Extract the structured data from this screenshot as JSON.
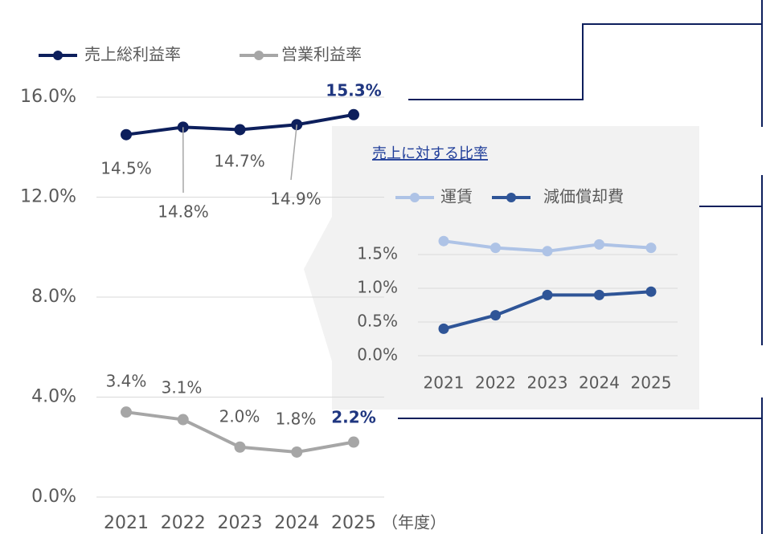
{
  "chart_data": [
    {
      "type": "line",
      "categories": [
        "2021",
        "2022",
        "2023",
        "2024",
        "2025"
      ],
      "x_label": "（年度）",
      "series": [
        {
          "name": "売上総利益率",
          "color": "#0d1f5c",
          "values": [
            14.5,
            14.8,
            14.7,
            14.9,
            15.3
          ],
          "value_labels": [
            "14.5%",
            "14.8%",
            "14.7%",
            "14.9%",
            "15.3%"
          ]
        },
        {
          "name": "営業利益率",
          "color": "#a6a6a6",
          "values": [
            3.4,
            3.1,
            2.0,
            1.8,
            2.2
          ],
          "value_labels": [
            "3.4%",
            "3.1%",
            "2.0%",
            "1.8%",
            "2.2%"
          ]
        }
      ],
      "ylim": [
        0,
        16
      ],
      "yticks": [
        {
          "value": 0,
          "label": "0.0%"
        },
        {
          "value": 4,
          "label": "4.0%"
        },
        {
          "value": 8,
          "label": "8.0%"
        },
        {
          "value": 12,
          "label": "12.0%"
        },
        {
          "value": 16,
          "label": "16.0%"
        }
      ],
      "grid": true,
      "legend": "top"
    },
    {
      "type": "line",
      "title": "売上に対する比率",
      "categories": [
        "2021",
        "2022",
        "2023",
        "2024",
        "2025"
      ],
      "series": [
        {
          "name": "運賃",
          "color": "#aec3e6",
          "values": [
            1.7,
            1.6,
            1.55,
            1.65,
            1.6
          ]
        },
        {
          "name": "減価償却費",
          "color": "#2f5597",
          "values": [
            0.4,
            0.6,
            0.9,
            0.9,
            0.95
          ]
        }
      ],
      "ylim": [
        0,
        1.75
      ],
      "yticks": [
        {
          "value": 0,
          "label": "0.0%"
        },
        {
          "value": 0.5,
          "label": "0.5%"
        },
        {
          "value": 1,
          "label": "1.0%"
        },
        {
          "value": 1.5,
          "label": "1.5%"
        }
      ],
      "grid": true,
      "legend": "top"
    }
  ]
}
